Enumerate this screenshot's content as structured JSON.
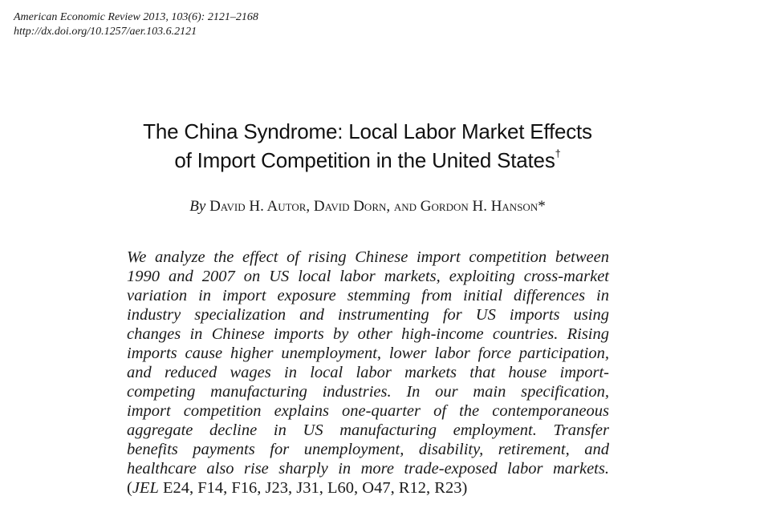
{
  "journal": {
    "citation": "American Economic Review 2013, 103(6): 2121–2168",
    "doi": "http://dx.doi.org/10.1257/aer.103.6.2121"
  },
  "paper": {
    "title_line1": "The China Syndrome: Local Labor Market Effects",
    "title_line2": "of Import Competition in the United States",
    "title_mark": "†",
    "byline_prefix": "By",
    "authors_text": "David H. Autor, David Dorn, and Gordon H. Hanson*"
  },
  "abstract": {
    "lines": [
      "We analyze the effect of rising Chinese import competition between",
      "1990 and 2007 on US local labor markets, exploiting cross-market",
      "variation in import exposure stemming from initial differences in",
      "industry specialization and instrumenting for US imports using",
      "changes in Chinese imports by other high-income countries. Rising",
      "imports cause higher unemployment, lower labor force participation,",
      "and reduced wages in local labor markets that house import-",
      "competing manufacturing industries. In our main specification,",
      "import competition explains one-quarter of the contemporaneous",
      "aggregate decline in US manufacturing employment. Transfer",
      "benefits payments for unemployment, disability, retirement, and",
      "healthcare also rise sharply in more trade-exposed labor markets."
    ],
    "jel_open": "(",
    "jel_label": "JEL",
    "jel_codes": " E24, F14, F16, J23, J31, L60, O47, R12, R23)"
  }
}
